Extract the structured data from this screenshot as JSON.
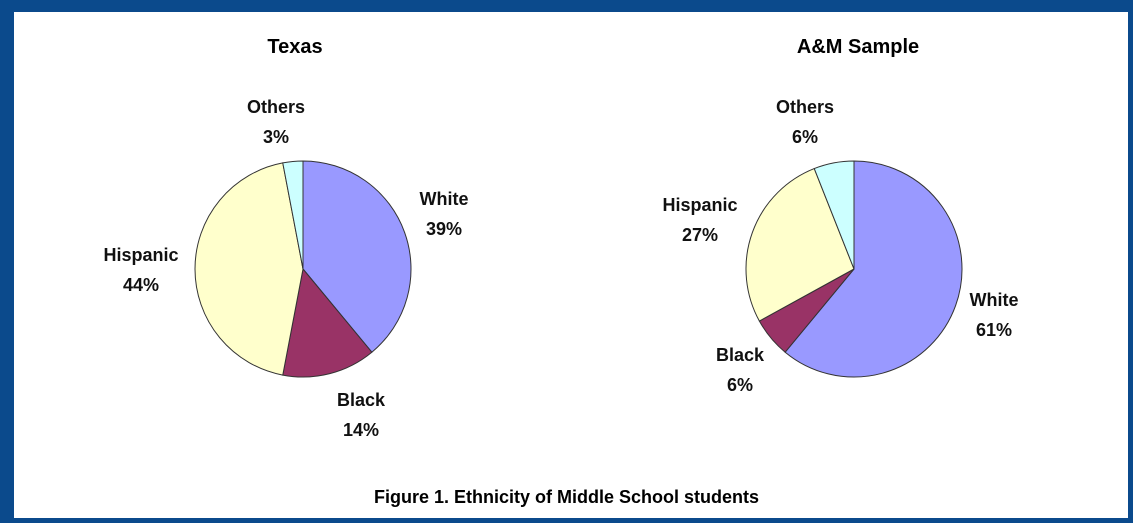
{
  "caption": "Figure 1. Ethnicity of Middle School students",
  "colors": {
    "background": "#0b4a8c",
    "panel": "#ffffff"
  },
  "chart_data": [
    {
      "type": "pie",
      "title": "Texas",
      "slices": [
        {
          "label": "White",
          "value": 39,
          "display": "39%",
          "color": "#9999ff"
        },
        {
          "label": "Black",
          "value": 14,
          "display": "14%",
          "color": "#993366"
        },
        {
          "label": "Hispanic",
          "value": 44,
          "display": "44%",
          "color": "#ffffcc"
        },
        {
          "label": "Others",
          "value": 3,
          "display": "3%",
          "color": "#ccffff"
        }
      ]
    },
    {
      "type": "pie",
      "title": "A&M Sample",
      "slices": [
        {
          "label": "White",
          "value": 61,
          "display": "61%",
          "color": "#9999ff"
        },
        {
          "label": "Black",
          "value": 6,
          "display": "6%",
          "color": "#993366"
        },
        {
          "label": "Hispanic",
          "value": 27,
          "display": "27%",
          "color": "#ffffcc"
        },
        {
          "label": "Others",
          "value": 6,
          "display": "6%",
          "color": "#ccffff"
        }
      ]
    }
  ]
}
